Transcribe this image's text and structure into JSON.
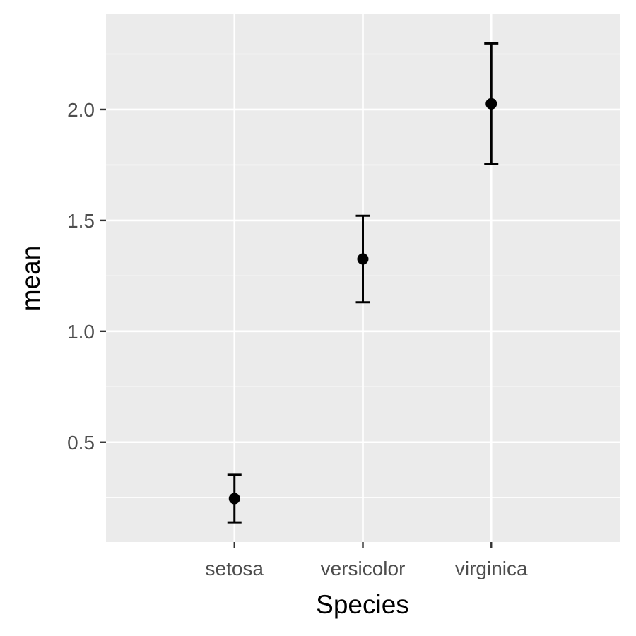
{
  "chart_data": {
    "type": "scatter",
    "subtype": "point-with-errorbars",
    "title": "",
    "xlabel": "Species",
    "ylabel": "mean",
    "categories": [
      "setosa",
      "versicolor",
      "virginica"
    ],
    "series": [
      {
        "values": [
          0.246,
          1.326,
          2.026
        ],
        "error_lower": [
          0.139,
          1.131,
          1.754
        ],
        "error_upper": [
          0.353,
          1.521,
          2.298
        ]
      }
    ],
    "ylim": [
      0.05,
      2.43
    ],
    "yticks": [
      0.5,
      1.0,
      1.5,
      2.0
    ],
    "ytick_labels": [
      "0.5",
      "1.0",
      "1.5",
      "2.0"
    ],
    "grid": true,
    "legend": "none",
    "colors": {
      "panel_background": "#ebebeb",
      "grid_major": "#ffffff",
      "grid_minor": "#f7f7f7",
      "points": "#000000",
      "tick_text": "#4d4d4d",
      "axis_title": "#000000"
    }
  }
}
